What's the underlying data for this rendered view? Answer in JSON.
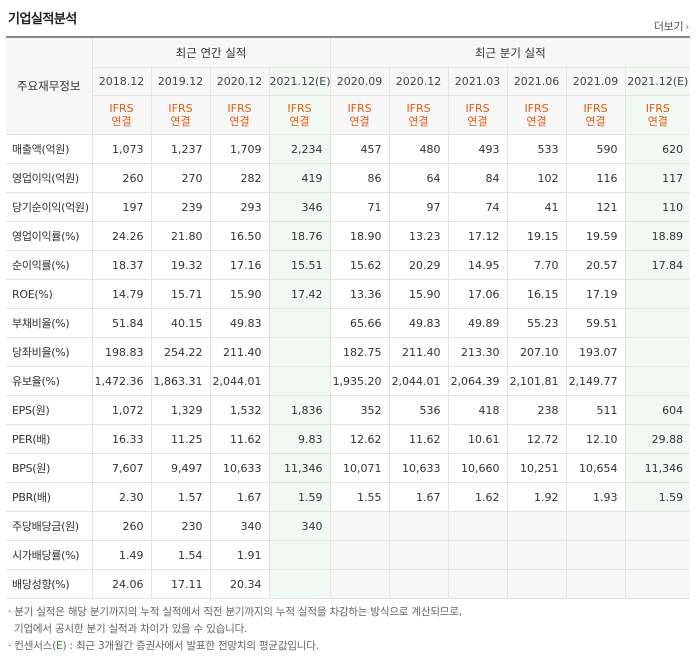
{
  "title": "기업실적분석",
  "more_label": "더보기",
  "more_arrow": "›",
  "corner_label": "주요재무정보",
  "groups": {
    "annual": "최근 연간 실적",
    "quarterly": "최근 분기 실적"
  },
  "periods": [
    "2018.12",
    "2019.12",
    "2020.12",
    "2021.12(E)",
    "2020.09",
    "2020.12",
    "2021.03",
    "2021.06",
    "2021.09",
    "2021.12(E)"
  ],
  "ifrs_top": "IFRS",
  "ifrs_bottom": "연결",
  "rows": [
    {
      "label": "매출액(억원)",
      "values": [
        "1,073",
        "1,237",
        "1,709",
        "2,234",
        "457",
        "480",
        "493",
        "533",
        "590",
        "620"
      ]
    },
    {
      "label": "영업이익(억원)",
      "values": [
        "260",
        "270",
        "282",
        "419",
        "86",
        "64",
        "84",
        "102",
        "116",
        "117"
      ]
    },
    {
      "label": "당기순이익(억원)",
      "values": [
        "197",
        "239",
        "293",
        "346",
        "71",
        "97",
        "74",
        "41",
        "121",
        "110"
      ]
    },
    {
      "label": "영업이익률(%)",
      "values": [
        "24.26",
        "21.80",
        "16.50",
        "18.76",
        "18.90",
        "13.23",
        "17.12",
        "19.15",
        "19.59",
        "18.89"
      ]
    },
    {
      "label": "순이익률(%)",
      "values": [
        "18.37",
        "19.32",
        "17.16",
        "15.51",
        "15.62",
        "20.29",
        "14.95",
        "7.70",
        "20.57",
        "17.84"
      ]
    },
    {
      "label": "ROE(%)",
      "values": [
        "14.79",
        "15.71",
        "15.90",
        "17.42",
        "13.36",
        "15.90",
        "17.06",
        "16.15",
        "17.19",
        ""
      ]
    },
    {
      "label": "부채비율(%)",
      "values": [
        "51.84",
        "40.15",
        "49.83",
        "",
        "65.66",
        "49.83",
        "49.89",
        "55.23",
        "59.51",
        ""
      ]
    },
    {
      "label": "당좌비율(%)",
      "values": [
        "198.83",
        "254.22",
        "211.40",
        "",
        "182.75",
        "211.40",
        "213.30",
        "207.10",
        "193.07",
        ""
      ]
    },
    {
      "label": "유보율(%)",
      "values": [
        "1,472.36",
        "1,863.31",
        "2,044.01",
        "",
        "1,935.20",
        "2,044.01",
        "2,064.39",
        "2,101.81",
        "2,149.77",
        ""
      ]
    },
    {
      "label": "EPS(원)",
      "values": [
        "1,072",
        "1,329",
        "1,532",
        "1,836",
        "352",
        "536",
        "418",
        "238",
        "511",
        "604"
      ]
    },
    {
      "label": "PER(배)",
      "values": [
        "16.33",
        "11.25",
        "11.62",
        "9.83",
        "12.62",
        "11.62",
        "10.61",
        "12.72",
        "12.10",
        "29.88"
      ]
    },
    {
      "label": "BPS(원)",
      "values": [
        "7,607",
        "9,497",
        "10,633",
        "11,346",
        "10,071",
        "10,633",
        "10,660",
        "10,251",
        "10,654",
        "11,346"
      ]
    },
    {
      "label": "PBR(배)",
      "values": [
        "2.30",
        "1.57",
        "1.67",
        "1.59",
        "1.55",
        "1.67",
        "1.62",
        "1.92",
        "1.93",
        "1.59"
      ]
    },
    {
      "label": "주당배당금(원)",
      "values": [
        "260",
        "230",
        "340",
        "340",
        "",
        "",
        "",
        "",
        "",
        ""
      ]
    },
    {
      "label": "시가배당률(%)",
      "values": [
        "1.49",
        "1.54",
        "1.91",
        "",
        "",
        "",
        "",
        "",
        "",
        ""
      ]
    },
    {
      "label": "배당성향(%)",
      "values": [
        "24.06",
        "17.11",
        "20.34",
        "",
        "",
        "",
        "",
        "",
        "",
        ""
      ]
    }
  ],
  "notes": {
    "line1": "· 분기 실적은 해당 분기까지의 누적 실적에서 직전 분기까지의 누적 실적을 차감하는 방식으로 계산되므로,",
    "line2": "  기업에서 공시한 분기 실적과 차이가 있을 수 있습니다.",
    "line3_prefix": "· 컨센서스(",
    "line3_e": "E",
    "line3_suffix": ") : 최근 3개월간 증권사에서 발표한 전망치의 평균값입니다."
  }
}
